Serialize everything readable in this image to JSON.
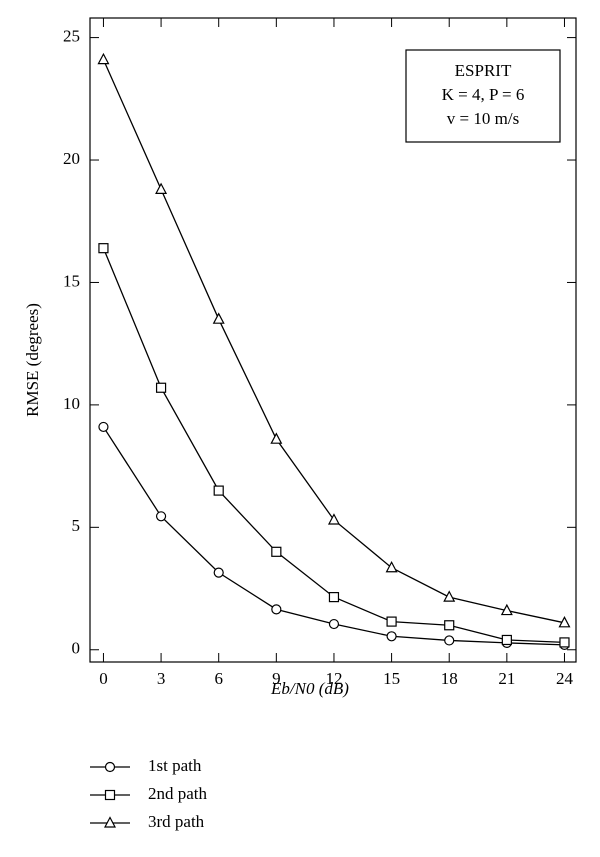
{
  "chart_data": {
    "type": "line",
    "x_label": "Eb/N0 (dB)",
    "y_label": "RMSE (degrees)",
    "annotations": [
      "ESPRIT",
      "K = 4, P = 6",
      "v = 10 m/s"
    ],
    "x": [
      0,
      3,
      6,
      9,
      12,
      15,
      18,
      21,
      24
    ],
    "xlim": [
      -0.7,
      24.6
    ],
    "xticks": [
      0,
      3,
      6,
      9,
      12,
      15,
      18,
      21,
      24
    ],
    "ylim": [
      -0.5,
      25.8
    ],
    "yticks": [
      0,
      5,
      10,
      15,
      20,
      25
    ],
    "legend": "bottom-left",
    "series": [
      {
        "name": "1st path",
        "color": "#000000",
        "marker": "circle",
        "values": [
          9.1,
          5.45,
          3.15,
          1.65,
          1.05,
          0.55,
          0.38,
          0.28,
          0.2
        ]
      },
      {
        "name": "2nd path",
        "color": "#000000",
        "marker": "square",
        "values": [
          16.4,
          10.7,
          6.5,
          4.0,
          2.15,
          1.15,
          1.0,
          0.4,
          0.3
        ]
      },
      {
        "name": "3rd path",
        "color": "#000000",
        "marker": "triangle",
        "values": [
          24.1,
          18.8,
          13.5,
          8.6,
          5.3,
          3.35,
          2.15,
          1.6,
          1.1
        ]
      }
    ]
  }
}
